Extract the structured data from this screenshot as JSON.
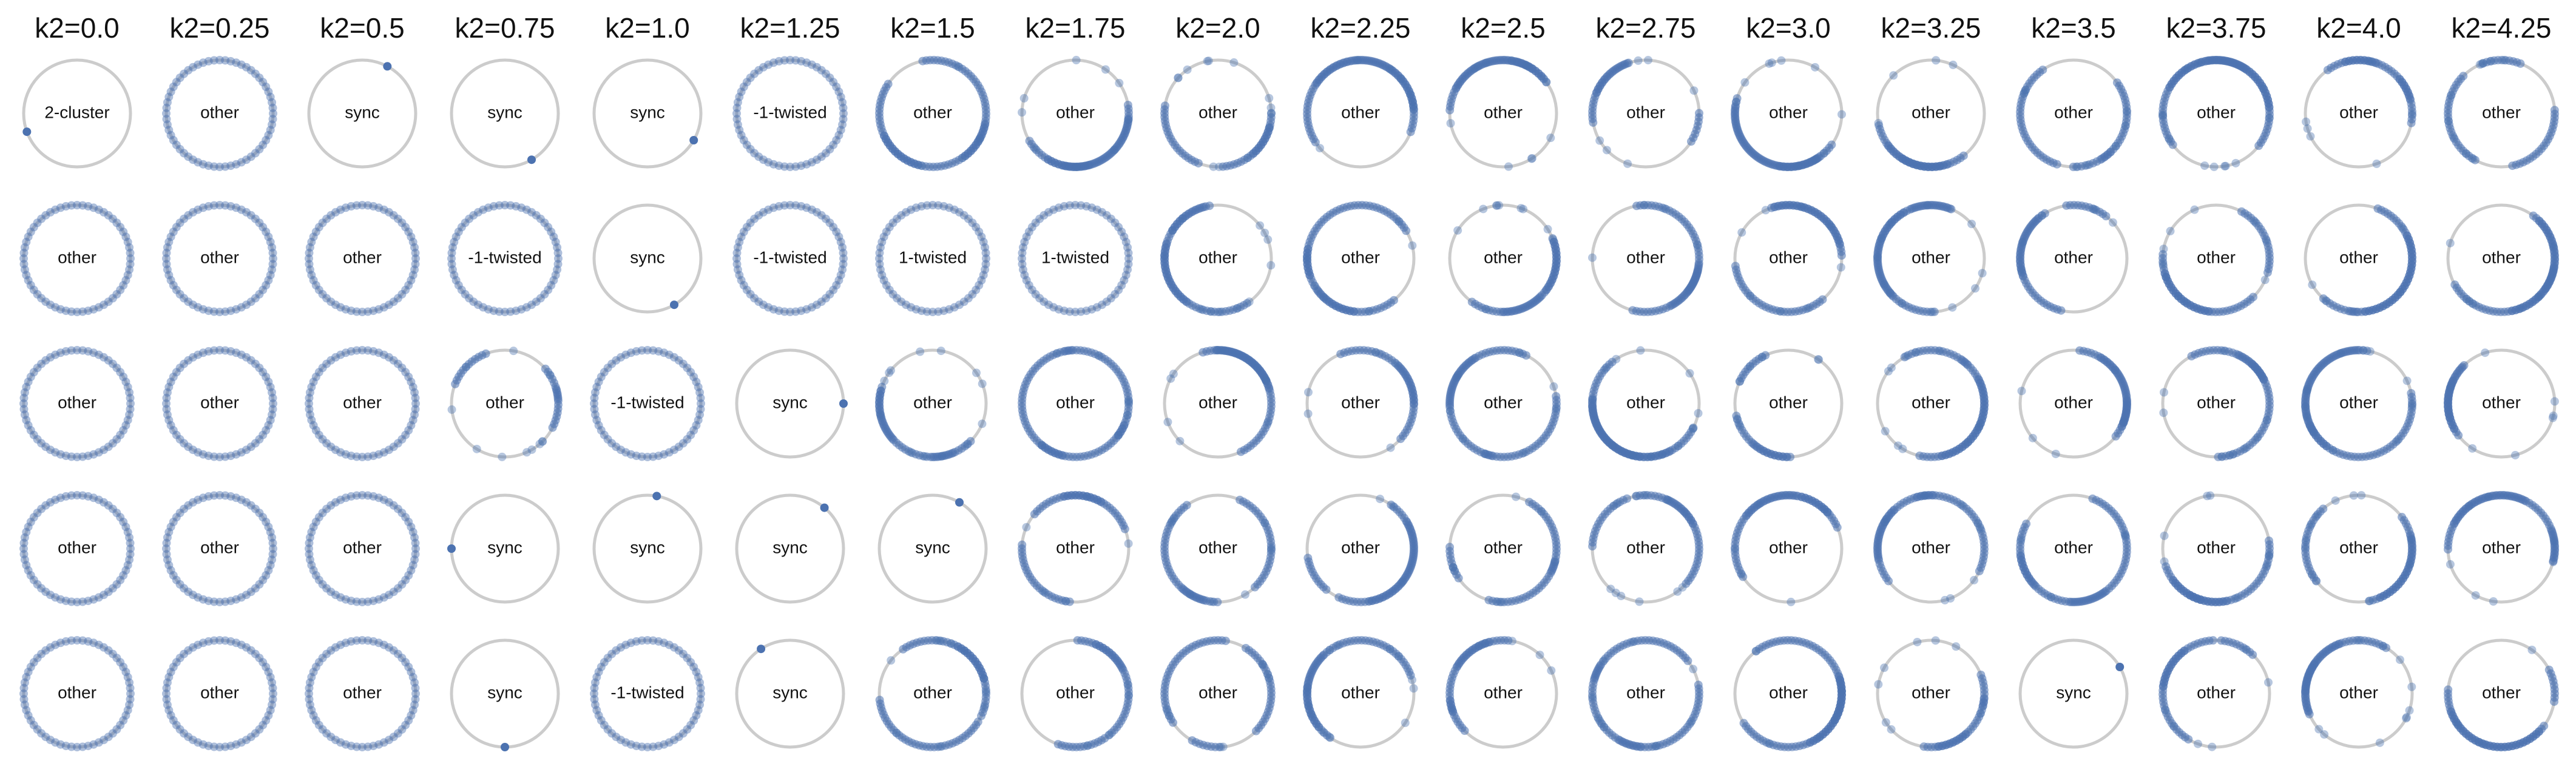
{
  "chart_data": {
    "type": "scatter",
    "description_note": "",
    "columns": [
      "k2=0.0",
      "k2=0.25",
      "k2=0.5",
      "k2=0.75",
      "k2=1.0",
      "k2=1.25",
      "k2=1.5",
      "k2=1.75",
      "k2=2.0",
      "k2=2.25",
      "k2=2.5",
      "k2=2.75",
      "k2=3.0",
      "k2=3.25",
      "k2=3.5",
      "k2=3.75",
      "k2=4.0",
      "k2=4.25"
    ],
    "k2_values": [
      0.0,
      0.25,
      0.5,
      0.75,
      1.0,
      1.25,
      1.5,
      1.75,
      2.0,
      2.25,
      2.5,
      2.75,
      3.0,
      3.25,
      3.5,
      3.75,
      4.0,
      4.25
    ],
    "rows": 5,
    "colors": {
      "point": "#4c72b0",
      "ring": "#cccccc"
    },
    "grid": [
      [
        "2-cluster",
        "other",
        "sync",
        "sync",
        "sync",
        "-1-twisted",
        "other",
        "other",
        "other",
        "other",
        "other",
        "other",
        "other",
        "other",
        "other",
        "other",
        "other",
        "other"
      ],
      [
        "other",
        "other",
        "other",
        "-1-twisted",
        "sync",
        "-1-twisted",
        "1-twisted",
        "1-twisted",
        "other",
        "other",
        "other",
        "other",
        "other",
        "other",
        "other",
        "other",
        "other",
        "other"
      ],
      [
        "other",
        "other",
        "other",
        "other",
        "-1-twisted",
        "sync",
        "other",
        "other",
        "other",
        "other",
        "other",
        "other",
        "other",
        "other",
        "other",
        "other",
        "other",
        "other"
      ],
      [
        "other",
        "other",
        "other",
        "sync",
        "sync",
        "sync",
        "sync",
        "other",
        "other",
        "other",
        "other",
        "other",
        "other",
        "other",
        "other",
        "other",
        "other",
        "other"
      ],
      [
        "other",
        "other",
        "other",
        "sync",
        "-1-twisted",
        "sync",
        "other",
        "other",
        "other",
        "other",
        "other",
        "other",
        "other",
        "other",
        "sync",
        "other",
        "other",
        "other"
      ]
    ],
    "sync_phase_deg": [
      [
        null,
        null,
        62,
        -60,
        -30,
        null,
        null,
        null,
        null,
        null,
        null,
        null,
        null,
        null,
        null,
        null,
        null,
        null
      ],
      [
        null,
        null,
        null,
        null,
        -60,
        null,
        null,
        null,
        null,
        null,
        null,
        null,
        null,
        null,
        null,
        null,
        null,
        null
      ],
      [
        null,
        null,
        null,
        null,
        null,
        0,
        null,
        null,
        null,
        null,
        null,
        null,
        null,
        null,
        null,
        null,
        null,
        null
      ],
      [
        null,
        null,
        null,
        180,
        80,
        50,
        60,
        null,
        null,
        null,
        null,
        null,
        null,
        null,
        null,
        null,
        null,
        null
      ],
      [
        null,
        null,
        null,
        -90,
        null,
        123,
        null,
        null,
        null,
        null,
        null,
        null,
        null,
        null,
        30,
        null,
        null,
        null
      ]
    ],
    "cluster_phases_deg": [
      [
        null,
        200
      ]
    ]
  }
}
